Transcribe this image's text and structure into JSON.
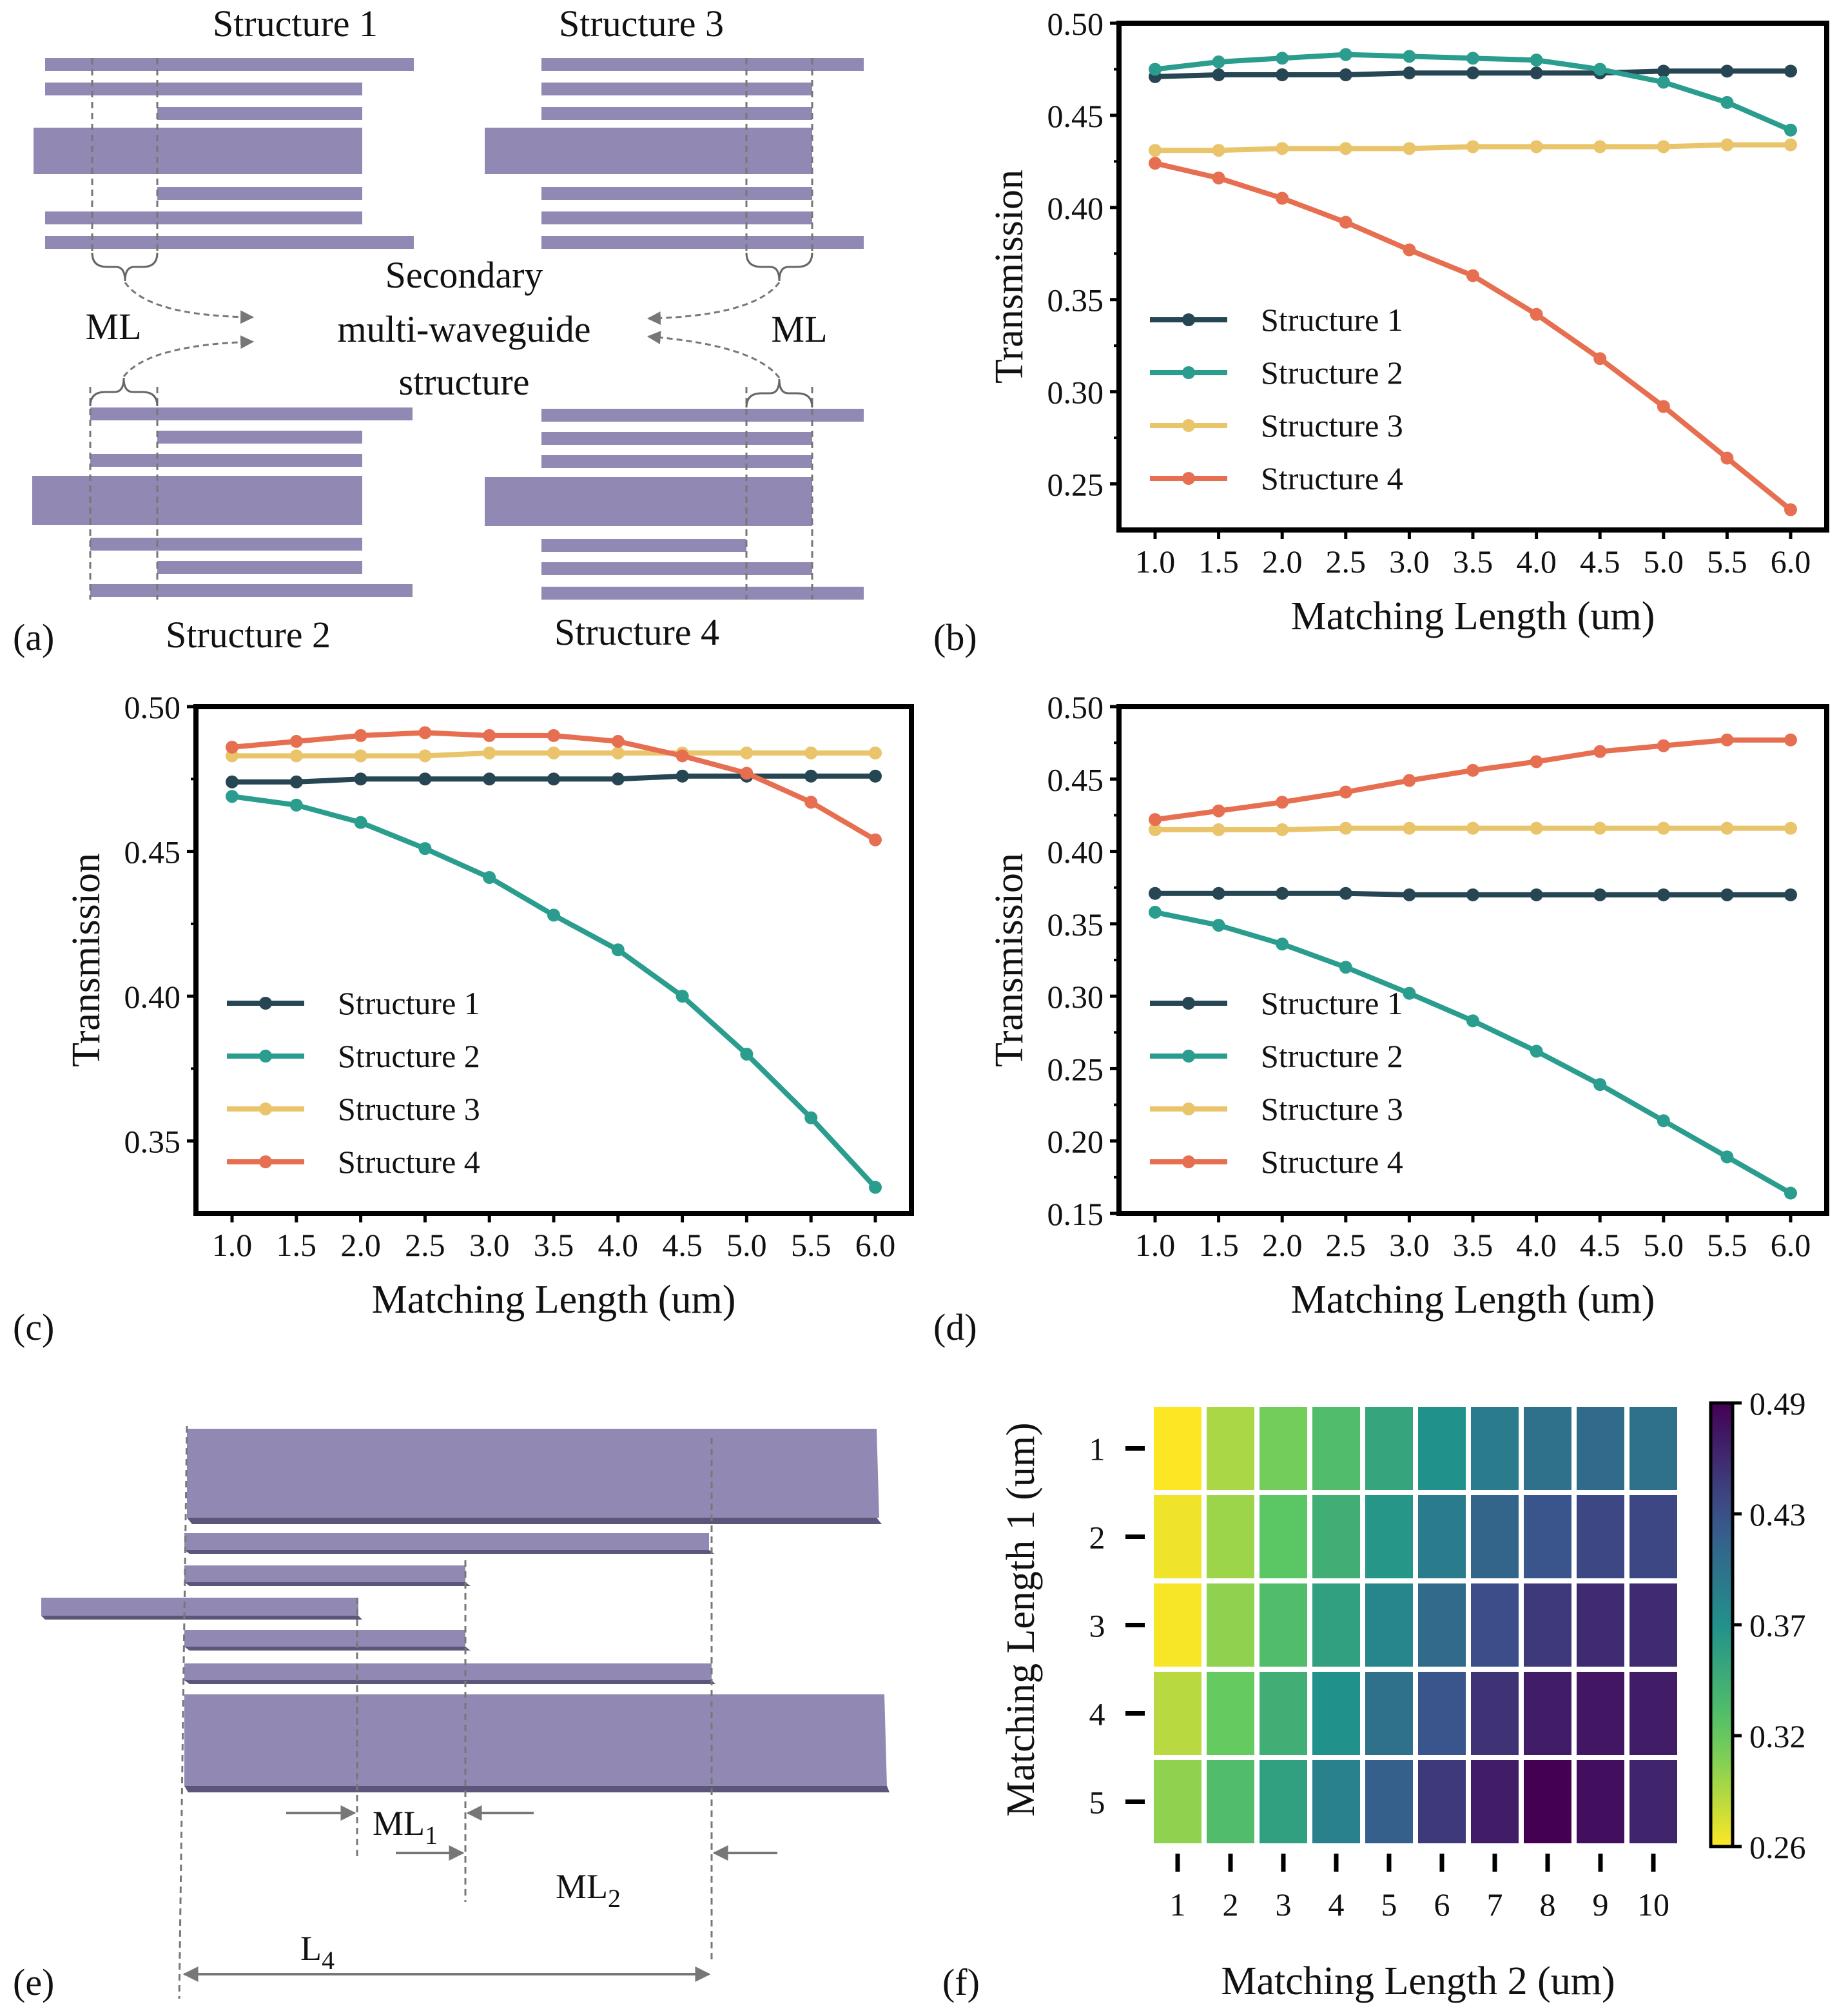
{
  "colors": {
    "structure_1": "#264653",
    "structure_2": "#2a9d8f",
    "structure_3": "#e9c46a",
    "structure_4": "#e76f51",
    "waveguide": "#9189b3",
    "guide_line": "#777777"
  },
  "panel_labels": {
    "a": "(a)",
    "b": "(b)",
    "c": "(c)",
    "d": "(d)",
    "e": "(e)",
    "f": "(f)"
  },
  "diagram_a": {
    "structure_1": "Structure 1",
    "structure_2": "Structure 2",
    "structure_3": "Structure 3",
    "structure_4": "Structure 4",
    "ml_left": "ML",
    "ml_right": "ML",
    "center_line_1": "Secondary",
    "center_line_2": "multi-waveguide",
    "center_line_3": "structure"
  },
  "diagram_e": {
    "ml1_base": "ML",
    "ml1_sub": "1",
    "ml2_base": "ML",
    "ml2_sub": "2",
    "l4_base": "L",
    "l4_sub": "4"
  },
  "chart_data": [
    {
      "id": "b",
      "type": "line",
      "xlabel": "Matching Length (um)",
      "ylabel": "Transmission",
      "x": [
        1.0,
        1.5,
        2.0,
        2.5,
        3.0,
        3.5,
        4.0,
        4.5,
        5.0,
        5.5,
        6.0
      ],
      "x_tick_labels": [
        "1.0",
        "1.5",
        "2.0",
        "2.5",
        "3.0",
        "3.5",
        "4.0",
        "4.5",
        "5.0",
        "5.5",
        "6.0"
      ],
      "ylim": [
        0.225,
        0.5
      ],
      "y_ticks": [
        0.25,
        0.3,
        0.35,
        0.4,
        0.45,
        0.5
      ],
      "y_tick_labels": [
        "0.25",
        "0.30",
        "0.35",
        "0.40",
        "0.45",
        "0.50"
      ],
      "legend": "center-left",
      "series": [
        {
          "name": "Structure 1",
          "values": [
            0.471,
            0.472,
            0.472,
            0.472,
            0.473,
            0.473,
            0.473,
            0.473,
            0.474,
            0.474,
            0.474
          ]
        },
        {
          "name": "Structure 2",
          "values": [
            0.475,
            0.479,
            0.481,
            0.483,
            0.482,
            0.481,
            0.48,
            0.475,
            0.468,
            0.457,
            0.442
          ]
        },
        {
          "name": "Structure 3",
          "values": [
            0.431,
            0.431,
            0.432,
            0.432,
            0.432,
            0.433,
            0.433,
            0.433,
            0.433,
            0.434,
            0.434
          ]
        },
        {
          "name": "Structure 4",
          "values": [
            0.424,
            0.416,
            0.405,
            0.392,
            0.377,
            0.363,
            0.342,
            0.318,
            0.292,
            0.264,
            0.236
          ]
        }
      ]
    },
    {
      "id": "c",
      "type": "line",
      "xlabel": "Matching Length (um)",
      "ylabel": "Transmission",
      "x": [
        1.0,
        1.5,
        2.0,
        2.5,
        3.0,
        3.5,
        4.0,
        4.5,
        5.0,
        5.5,
        6.0
      ],
      "x_tick_labels": [
        "1.0",
        "1.5",
        "2.0",
        "2.5",
        "3.0",
        "3.5",
        "4.0",
        "4.5",
        "5.0",
        "5.5",
        "6.0"
      ],
      "ylim": [
        0.325,
        0.5
      ],
      "y_ticks": [
        0.35,
        0.4,
        0.45,
        0.5
      ],
      "y_tick_labels": [
        "0.35",
        "0.40",
        "0.45",
        "0.50"
      ],
      "legend": "lower-left",
      "series": [
        {
          "name": "Structure 1",
          "values": [
            0.474,
            0.474,
            0.475,
            0.475,
            0.475,
            0.475,
            0.475,
            0.476,
            0.476,
            0.476,
            0.476
          ]
        },
        {
          "name": "Structure 2",
          "values": [
            0.469,
            0.466,
            0.46,
            0.451,
            0.441,
            0.428,
            0.416,
            0.4,
            0.38,
            0.358,
            0.334
          ]
        },
        {
          "name": "Structure 3",
          "values": [
            0.483,
            0.483,
            0.483,
            0.483,
            0.484,
            0.484,
            0.484,
            0.484,
            0.484,
            0.484,
            0.484
          ]
        },
        {
          "name": "Structure 4",
          "values": [
            0.486,
            0.488,
            0.49,
            0.491,
            0.49,
            0.49,
            0.488,
            0.483,
            0.477,
            0.467,
            0.454
          ]
        }
      ]
    },
    {
      "id": "d",
      "type": "line",
      "xlabel": "Matching Length (um)",
      "ylabel": "Transmission",
      "x": [
        1.0,
        1.5,
        2.0,
        2.5,
        3.0,
        3.5,
        4.0,
        4.5,
        5.0,
        5.5,
        6.0
      ],
      "x_tick_labels": [
        "1.0",
        "1.5",
        "2.0",
        "2.5",
        "3.0",
        "3.5",
        "4.0",
        "4.5",
        "5.0",
        "5.5",
        "6.0"
      ],
      "ylim": [
        0.15,
        0.5
      ],
      "y_ticks": [
        0.15,
        0.2,
        0.25,
        0.3,
        0.35,
        0.4,
        0.45,
        0.5
      ],
      "y_tick_labels": [
        "0.15",
        "0.20",
        "0.25",
        "0.30",
        "0.35",
        "0.40",
        "0.45",
        "0.50"
      ],
      "legend": "lower-left",
      "series": [
        {
          "name": "Structure 1",
          "values": [
            0.371,
            0.371,
            0.371,
            0.371,
            0.37,
            0.37,
            0.37,
            0.37,
            0.37,
            0.37,
            0.37
          ]
        },
        {
          "name": "Structure 2",
          "values": [
            0.358,
            0.349,
            0.336,
            0.32,
            0.302,
            0.283,
            0.262,
            0.239,
            0.214,
            0.189,
            0.164
          ]
        },
        {
          "name": "Structure 3",
          "values": [
            0.415,
            0.415,
            0.415,
            0.416,
            0.416,
            0.416,
            0.416,
            0.416,
            0.416,
            0.416,
            0.416
          ]
        },
        {
          "name": "Structure 4",
          "values": [
            0.422,
            0.428,
            0.434,
            0.441,
            0.449,
            0.456,
            0.462,
            0.469,
            0.473,
            0.477,
            0.477
          ]
        }
      ]
    },
    {
      "id": "f",
      "type": "heatmap",
      "xlabel": "Matching Length 2 (um)",
      "ylabel": "Matching Length 1 (um)",
      "x_tick_labels": [
        "1",
        "2",
        "3",
        "4",
        "5",
        "6",
        "7",
        "8",
        "9",
        "10"
      ],
      "y_tick_labels": [
        "1",
        "2",
        "3",
        "4",
        "5"
      ],
      "colorbar_range": [
        0.26,
        0.49
      ],
      "colorbar_tick_labels": [
        "0.26",
        "0.32",
        "0.37",
        "0.43",
        "0.49"
      ],
      "colorbar_ticks": [
        0.26,
        0.3175,
        0.375,
        0.4325,
        0.49
      ],
      "values": [
        [
          0.26,
          0.29,
          0.31,
          0.33,
          0.355,
          0.375,
          0.395,
          0.405,
          0.41,
          0.405
        ],
        [
          0.265,
          0.295,
          0.32,
          0.345,
          0.37,
          0.395,
          0.415,
          0.43,
          0.44,
          0.44
        ],
        [
          0.262,
          0.3,
          0.33,
          0.36,
          0.385,
          0.41,
          0.435,
          0.45,
          0.46,
          0.46
        ],
        [
          0.285,
          0.315,
          0.345,
          0.375,
          0.405,
          0.43,
          0.455,
          0.47,
          0.475,
          0.47
        ],
        [
          0.3,
          0.33,
          0.36,
          0.39,
          0.42,
          0.45,
          0.47,
          0.49,
          0.48,
          0.465
        ]
      ]
    }
  ]
}
